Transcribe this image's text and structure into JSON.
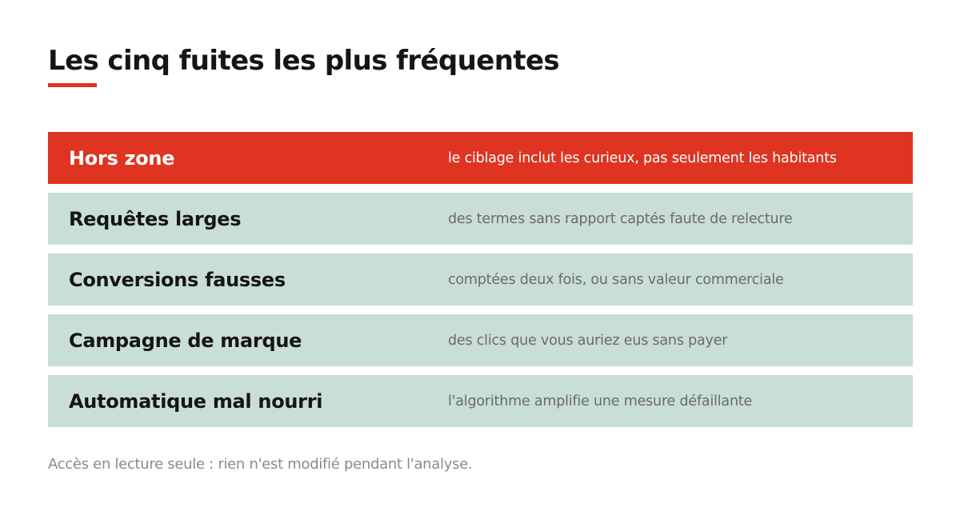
{
  "title": "Les cinq fuites les plus fréquentes",
  "accent_color": "#de3421",
  "row_color": "#c9ddd9",
  "rows": [
    {
      "label": "Hors zone",
      "description": "le ciblage inclut les curieux, pas seulement les habitants",
      "highlighted": true
    },
    {
      "label": "Requêtes larges",
      "description": "des termes sans rapport captés faute de relecture",
      "highlighted": false
    },
    {
      "label": "Conversions fausses",
      "description": "comptées deux fois, ou sans valeur commerciale",
      "highlighted": false
    },
    {
      "label": "Campagne de marque",
      "description": "des clics que vous auriez eus sans payer",
      "highlighted": false
    },
    {
      "label": "Automatique mal nourri",
      "description": "l'algorithme amplifie une mesure défaillante",
      "highlighted": false
    }
  ],
  "footnote": "Accès en lecture seule : rien n'est modifié pendant l'analyse."
}
